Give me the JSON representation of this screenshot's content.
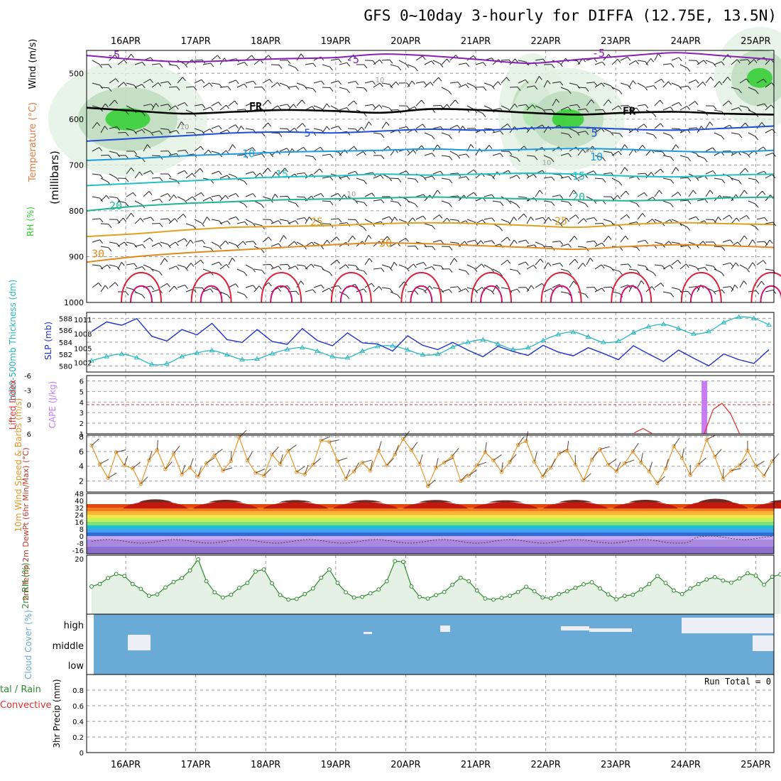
{
  "title": "GFS 0~10day 3-hourly for DIFFA (12.75E, 13.5N)",
  "colors": {
    "axis": "#000000",
    "grid": "#9a9a9a",
    "temp_cold": "#8a1fb8",
    "temp_mid": "#1f4fd8",
    "temp_warm": "#e08a1a",
    "temp_hot": "#e0203a",
    "freezing": "#000000",
    "rh_green": "#2fcf2f",
    "slp": "#1f33c8",
    "thickness": "#27b8c0",
    "cape": "#c77df0",
    "lifted_index": "#e03030",
    "wind_speed": "#e8962a",
    "rh2m": "#2e8b2e",
    "cloud": "#6aaad6",
    "cloud_clear": "#eeeef6"
  },
  "chart_data": [
    {
      "panel": "upper_air",
      "type": "heatmap",
      "x_date_labels": [
        "16APR",
        "17APR",
        "18APR",
        "19APR",
        "20APR",
        "21APR",
        "22APR",
        "23APR",
        "24APR",
        "25APR"
      ],
      "ylabel": "(millibars)",
      "yticks": [
        500,
        600,
        700,
        800,
        900,
        1000
      ],
      "ylim": [
        450,
        1000
      ],
      "side_labels": [
        "Wind (m/s)",
        "Temperature (°C)",
        "RH (%)"
      ],
      "isotherm_labels": [
        "-5",
        "-5",
        "-5",
        "FR",
        "FR",
        "5",
        "5",
        "10",
        "10",
        "15",
        "15",
        "20",
        "20",
        "25",
        "25",
        "30",
        "30"
      ],
      "rh_contour_labels": [
        "10",
        "10",
        "10",
        "10",
        "30"
      ],
      "isotherms": [
        {
          "label": "-5",
          "pressure": [
            461,
            470,
            475,
            472,
            468,
            466,
            458,
            462,
            470,
            478,
            470,
            462,
            455,
            462,
            470
          ]
        },
        {
          "label": "0",
          "pressure": [
            575,
            582,
            588,
            584,
            580,
            582,
            586,
            578,
            580,
            586,
            590,
            586,
            584,
            588,
            590
          ]
        },
        {
          "label": "5",
          "pressure": [
            648,
            642,
            636,
            630,
            628,
            630,
            626,
            622,
            624,
            620,
            618,
            622,
            624,
            620,
            615
          ]
        },
        {
          "label": "10",
          "pressure": [
            690,
            686,
            680,
            676,
            672,
            670,
            668,
            665,
            668,
            666,
            664,
            666,
            670,
            672,
            668
          ]
        },
        {
          "label": "15",
          "pressure": [
            745,
            740,
            735,
            730,
            726,
            724,
            720,
            722,
            720,
            718,
            720,
            724,
            726,
            722,
            720
          ]
        },
        {
          "label": "20",
          "pressure": [
            800,
            790,
            784,
            780,
            776,
            774,
            772,
            770,
            772,
            774,
            776,
            778,
            776,
            772,
            770
          ]
        },
        {
          "label": "25",
          "pressure": [
            856,
            850,
            842,
            836,
            834,
            832,
            828,
            826,
            828,
            832,
            836,
            830,
            826,
            828,
            830
          ]
        },
        {
          "label": "30",
          "pressure": [
            912,
            900,
            892,
            886,
            880,
            874,
            870,
            872,
            876,
            880,
            884,
            878,
            874,
            876,
            880
          ]
        }
      ]
    },
    {
      "panel": "slp_thickness",
      "type": "line",
      "ylabel_left": "1000-500mb Thickness (dm)",
      "ylabel_right": "SLP (mb)",
      "thickness_ticks": [
        580,
        582,
        584,
        586,
        588
      ],
      "thickness_lim": [
        579,
        589
      ],
      "slp_ticks": [
        1002,
        1005,
        1008,
        1011
      ],
      "slp_lim": [
        1000,
        1012.5
      ],
      "series": [
        {
          "name": "SLP",
          "values": [
            1008.5,
            1010.5,
            1009.8,
            1011.2,
            1007.5,
            1006.5,
            1008.9,
            1007.8,
            1010.2,
            1006.8,
            1006.2,
            1008.9,
            1006.4,
            1005.8,
            1009.1,
            1006.6,
            1005.5,
            1008.2,
            1006.1,
            1005.9,
            1004.4,
            1007.6,
            1005.6,
            1004.7,
            1006.2,
            1004.6,
            1003.2,
            1005.4,
            1004.3,
            1003.5,
            1005.6,
            1004.2,
            1003.4,
            1005.1,
            1003.9,
            1002.6,
            1005.5,
            1003.8,
            1002.2,
            1004.6,
            1002.9,
            1001.3,
            1003.8,
            1002.6,
            1001.8,
            1004.7
          ]
        },
        {
          "name": "Thickness",
          "values": [
            580.9,
            581.6,
            582.0,
            581.4,
            580.3,
            580.4,
            581.6,
            582.2,
            582.6,
            581.9,
            581.1,
            581.2,
            582.1,
            582.8,
            583.1,
            582.5,
            581.6,
            581.4,
            582.5,
            583.3,
            583.4,
            582.7,
            581.9,
            582.0,
            583.2,
            584.0,
            584.4,
            583.7,
            582.8,
            583.1,
            584.3,
            585.3,
            585.7,
            584.9,
            584.0,
            584.2,
            585.6,
            586.6,
            587.0,
            586.3,
            585.4,
            585.8,
            587.3,
            588.2,
            588.0,
            586.9
          ]
        }
      ]
    },
    {
      "panel": "cape_li",
      "type": "bar",
      "ylabel_left": "Lifted Index",
      "ylabel_right": "CAPE (J/kg)",
      "li_ticks": [
        "-6",
        "-3",
        "0",
        "3",
        "6"
      ],
      "cape_ticks": [
        "1",
        "2",
        "3",
        "4",
        "5",
        "6"
      ],
      "li_lim": [
        -6,
        6
      ],
      "cape_lim": [
        1,
        6.5
      ],
      "cape_bars": [
        {
          "step": 70,
          "value": 6
        }
      ],
      "lifted_index_segments": [
        {
          "steps": [
            62,
            63,
            64
          ],
          "values": [
            5.8,
            4.9,
            5.9
          ]
        },
        {
          "steps": [
            70,
            71,
            72,
            73,
            74
          ],
          "values": [
            5.9,
            1.0,
            -0.3,
            1.9,
            5.9
          ]
        },
        {
          "steps": [
            79,
            80
          ],
          "values": [
            5.9,
            5.0
          ]
        }
      ]
    },
    {
      "panel": "wind10m",
      "type": "line",
      "ylabel": "10m Wind Speed & Barbs (m/s)",
      "yticks": [
        2,
        4,
        6,
        8
      ],
      "ylim": [
        0.5,
        8.2
      ],
      "series": [
        {
          "name": "Speed",
          "values": [
            6.8,
            4.3,
            2.4,
            5.9,
            4.1,
            3.7,
            1.6,
            4.8,
            6.2,
            3.6,
            5.7,
            2.9,
            3.8,
            2.6,
            4.4,
            5.5,
            3.4,
            4.7,
            7.9,
            4.8,
            3.1,
            2.7,
            5.6,
            4.3,
            6.1,
            3.2,
            2.9,
            4.2,
            7.5,
            7.3,
            4.7,
            2.3,
            3.3,
            4.5,
            3.4,
            6.1,
            4.1,
            5.6,
            7.7,
            6.2,
            4.3,
            1.3,
            3.8,
            4.5,
            5.4,
            2.0,
            2.7,
            4.1,
            5.9,
            4.8,
            3.2,
            4.6,
            6.9,
            7.4,
            4.6,
            2.6,
            3.8,
            5.7,
            6.1,
            4.2,
            2.1,
            4.9,
            6.3,
            4.2,
            3.3,
            4.4,
            6.0,
            4.5,
            3.3,
            1.7,
            3.7,
            6.7,
            5.1,
            2.8,
            4.2,
            7.6,
            5.3,
            2.3,
            3.4,
            4.1,
            6.1,
            4.0,
            2.7,
            4.7
          ]
        }
      ]
    },
    {
      "panel": "temp2m",
      "type": "area",
      "ylabel": "2m Temp 2m DewPt (6hr Min/Max) (°C)",
      "yticks": [
        "-16",
        "-8",
        "0",
        "8",
        "16",
        "24",
        "32",
        "40",
        "48"
      ],
      "ylim": [
        -20,
        48
      ],
      "daily_max": [
        41.8,
        40.9,
        40.6,
        40.5,
        40.7,
        40.3,
        40.8,
        41.0,
        42.5,
        41.0
      ],
      "night_min": [
        28.5,
        30.0,
        30.0,
        30.0,
        30.0,
        30.0,
        29.0,
        29.0,
        29.0,
        29.0
      ]
    },
    {
      "panel": "rh2m",
      "type": "line",
      "ylabel": "2m RH (%)",
      "yticks": [
        "20"
      ],
      "ylim": [
        4,
        21
      ],
      "series": [
        {
          "name": "RH",
          "values": [
            12.0,
            12.7,
            14.4,
            15.6,
            15.0,
            12.7,
            11.3,
            9.3,
            9.7,
            11.7,
            13.3,
            14.4,
            16.6,
            19.8,
            13.5,
            10.3,
            8.8,
            9.6,
            11.6,
            13.0,
            16.3,
            16.9,
            12.9,
            9.5,
            8.2,
            8.4,
            9.8,
            11.4,
            14.5,
            16.9,
            13.0,
            10.3,
            8.8,
            9.0,
            10.0,
            11.1,
            13.5,
            19.3,
            19.1,
            12.0,
            9.0,
            8.5,
            9.5,
            10.4,
            12.5,
            14.5,
            13.5,
            10.8,
            8.5,
            8.2,
            8.7,
            9.3,
            10.4,
            11.9,
            10.6,
            8.8,
            8.6,
            9.8,
            10.6,
            11.6,
            12.6,
            13.2,
            11.4,
            9.7,
            8.3,
            9.3,
            9.6,
            11.1,
            12.7,
            15.0,
            13.0,
            10.8,
            9.8,
            11.4,
            12.7,
            14.0,
            14.7,
            13.7,
            13.1,
            14.3,
            15.8,
            15.1,
            12.5,
            14.8,
            15.5
          ]
        }
      ]
    },
    {
      "panel": "cloud",
      "type": "heatmap",
      "ylabel": "Cloud Cover (%)",
      "levels": [
        "high",
        "middle",
        "low"
      ]
    },
    {
      "panel": "precip",
      "type": "bar",
      "ylabel": "3hr Precip (mm)",
      "left_legend": [
        "tal / Rain",
        "Convective"
      ],
      "yticks": [
        "0",
        "0.2",
        "0.4",
        "0.6",
        "0.8"
      ],
      "ylim": [
        0,
        1
      ],
      "run_total": "Run Total = 0",
      "values": []
    }
  ]
}
